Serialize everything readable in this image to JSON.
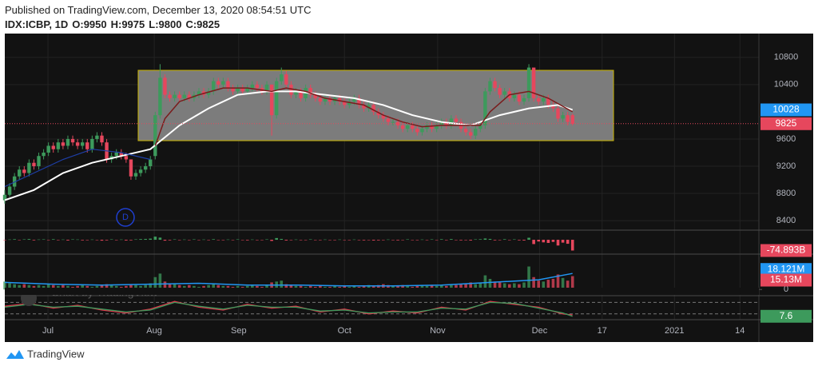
{
  "header": {
    "published": "Published on TradingView.com, December 13, 2020 08:54:51 UTC",
    "symbol": "IDX:ICBP, 1D",
    "ohlc_labels": [
      "O:",
      "H:",
      "L:",
      "C:"
    ]
  },
  "watermark": "Chart by TradingView",
  "marker_label": "D",
  "footer": "TradingView",
  "chart_data": [
    {
      "type": "candlestick",
      "up_color": "#3d9a5c",
      "down_color": "#e6475d",
      "grid": true,
      "xlim": [
        0,
        155.4
      ],
      "xticks": [
        {
          "value": 8.9,
          "label": "Jul"
        },
        {
          "value": 30.8,
          "label": "Aug"
        },
        {
          "value": 48.2,
          "label": "Sep"
        },
        {
          "value": 70,
          "label": "Oct"
        },
        {
          "value": 89.2,
          "label": "Nov"
        },
        {
          "value": 110.2,
          "label": "Dec"
        },
        {
          "value": 123.1,
          "label": "17"
        },
        {
          "value": 138,
          "label": "2021"
        },
        {
          "value": 151.5,
          "label": "14"
        }
      ],
      "ylim": [
        8260,
        11150
      ],
      "yticks": [
        8400,
        8800,
        9200,
        9600,
        10400,
        10800
      ],
      "last_price_line": true,
      "ohlc": [
        [
          8700,
          8850,
          8650,
          8780
        ],
        [
          8780,
          8950,
          8750,
          8900
        ],
        [
          8900,
          9100,
          8850,
          9050
        ],
        [
          9050,
          9200,
          9000,
          9150
        ],
        [
          9150,
          9200,
          9050,
          9100
        ],
        [
          9100,
          9300,
          9050,
          9250
        ],
        [
          9250,
          9300,
          9150,
          9200
        ],
        [
          9200,
          9400,
          9150,
          9350
        ],
        [
          9350,
          9450,
          9300,
          9400
        ],
        [
          9400,
          9550,
          9350,
          9500
        ],
        [
          9500,
          9550,
          9400,
          9450
        ],
        [
          9450,
          9600,
          9400,
          9550
        ],
        [
          9550,
          9600,
          9450,
          9500
        ],
        [
          9500,
          9650,
          9450,
          9600
        ],
        [
          9600,
          9650,
          9500,
          9550
        ],
        [
          9550,
          9600,
          9450,
          9500
        ],
        [
          9500,
          9600,
          9450,
          9550
        ],
        [
          9550,
          9600,
          9400,
          9450
        ],
        [
          9450,
          9650,
          9400,
          9600
        ],
        [
          9600,
          9700,
          9550,
          9650
        ],
        [
          9650,
          9700,
          9500,
          9550
        ],
        [
          9550,
          9600,
          9250,
          9300
        ],
        [
          9300,
          9400,
          9250,
          9350
        ],
        [
          9350,
          9450,
          9300,
          9400
        ],
        [
          9400,
          9450,
          9300,
          9350
        ],
        [
          9350,
          9400,
          9250,
          9300
        ],
        [
          9300,
          9300,
          9000,
          9050
        ],
        [
          9050,
          9150,
          9000,
          9100
        ],
        [
          9100,
          9200,
          9050,
          9150
        ],
        [
          9150,
          9250,
          9100,
          9200
        ],
        [
          9200,
          9350,
          9150,
          9300
        ],
        [
          9350,
          10000,
          9300,
          9950
        ],
        [
          9950,
          10700,
          9900,
          10500
        ],
        [
          10500,
          10550,
          10200,
          10250
        ],
        [
          10250,
          10300,
          10150,
          10200
        ],
        [
          10200,
          10300,
          10150,
          10250
        ],
        [
          10250,
          10300,
          10150,
          10200
        ],
        [
          10200,
          10300,
          10150,
          10250
        ],
        [
          10250,
          10300,
          10150,
          10200
        ],
        [
          10200,
          10300,
          10150,
          10250
        ],
        [
          10250,
          10350,
          10200,
          10300
        ],
        [
          10300,
          10350,
          10200,
          10250
        ],
        [
          10250,
          10350,
          10200,
          10300
        ],
        [
          10300,
          10500,
          10250,
          10450
        ],
        [
          10450,
          10500,
          10350,
          10400
        ],
        [
          10400,
          10500,
          10350,
          10450
        ],
        [
          10450,
          10500,
          10300,
          10350
        ],
        [
          10350,
          10400,
          10250,
          10300
        ],
        [
          10300,
          10400,
          10250,
          10350
        ],
        [
          10350,
          10400,
          10250,
          10300
        ],
        [
          10300,
          10400,
          10250,
          10350
        ],
        [
          10350,
          10450,
          10300,
          10400
        ],
        [
          10400,
          10450,
          10300,
          10350
        ],
        [
          10350,
          10400,
          10250,
          10300
        ],
        [
          10300,
          10450,
          10250,
          10400
        ],
        [
          10400,
          10400,
          9650,
          9950
        ],
        [
          9950,
          10500,
          9900,
          10450
        ],
        [
          10450,
          10650,
          10400,
          10550
        ],
        [
          10550,
          10600,
          10350,
          10400
        ],
        [
          10400,
          10450,
          10200,
          10250
        ],
        [
          10250,
          10350,
          10200,
          10300
        ],
        [
          10300,
          10350,
          10150,
          10200
        ],
        [
          10200,
          10400,
          10150,
          10350
        ],
        [
          10350,
          10400,
          10200,
          10250
        ],
        [
          10250,
          10300,
          10150,
          10200
        ],
        [
          10200,
          10250,
          10100,
          10150
        ],
        [
          10150,
          10250,
          10100,
          10200
        ],
        [
          10200,
          10250,
          10100,
          10150
        ],
        [
          10150,
          10250,
          10100,
          10200
        ],
        [
          10200,
          10250,
          10100,
          10150
        ],
        [
          10150,
          10200,
          10050,
          10100
        ],
        [
          10100,
          10200,
          10050,
          10150
        ],
        [
          10150,
          10250,
          10100,
          10200
        ],
        [
          10200,
          10250,
          10050,
          10100
        ],
        [
          10100,
          10150,
          10000,
          10050
        ],
        [
          10050,
          10150,
          10000,
          10100
        ],
        [
          10100,
          10150,
          9950,
          10000
        ],
        [
          10000,
          10050,
          9900,
          9950
        ],
        [
          9950,
          10000,
          9850,
          9900
        ],
        [
          9900,
          9950,
          9800,
          9850
        ],
        [
          9850,
          9900,
          9800,
          9850
        ],
        [
          9850,
          9900,
          9750,
          9800
        ],
        [
          9800,
          9850,
          9700,
          9750
        ],
        [
          9750,
          9850,
          9700,
          9800
        ],
        [
          9800,
          9850,
          9700,
          9750
        ],
        [
          9750,
          9800,
          9650,
          9700
        ],
        [
          9700,
          9800,
          9650,
          9750
        ],
        [
          9750,
          9850,
          9700,
          9800
        ],
        [
          9800,
          9850,
          9700,
          9750
        ],
        [
          9750,
          9850,
          9700,
          9800
        ],
        [
          9800,
          9900,
          9750,
          9850
        ],
        [
          9850,
          9900,
          9750,
          9800
        ],
        [
          9800,
          9950,
          9750,
          9900
        ],
        [
          9900,
          9950,
          9800,
          9850
        ],
        [
          9850,
          9900,
          9700,
          9750
        ],
        [
          9750,
          9800,
          9650,
          9700
        ],
        [
          9700,
          9750,
          9600,
          9650
        ],
        [
          9650,
          9800,
          9600,
          9750
        ],
        [
          9750,
          9850,
          9700,
          9800
        ],
        [
          9800,
          10350,
          9750,
          10300
        ],
        [
          10300,
          10500,
          10250,
          10450
        ],
        [
          10450,
          10500,
          10300,
          10350
        ],
        [
          10350,
          10400,
          10200,
          10250
        ],
        [
          10250,
          10350,
          10200,
          10300
        ],
        [
          10300,
          10350,
          10150,
          10200
        ],
        [
          10200,
          10300,
          10150,
          10250
        ],
        [
          10250,
          10300,
          10100,
          10150
        ],
        [
          10150,
          10250,
          10100,
          10200
        ],
        [
          10200,
          10700,
          10150,
          10650
        ],
        [
          10650,
          10650,
          10150,
          10200
        ],
        [
          10200,
          10250,
          10100,
          10150
        ],
        [
          10150,
          10250,
          10100,
          10200
        ],
        [
          10200,
          10250,
          10050,
          10100
        ],
        [
          10100,
          10150,
          10000,
          10050
        ],
        [
          10050,
          10100,
          9850,
          9900
        ],
        [
          9900,
          10000,
          9850,
          9950
        ],
        [
          9950,
          10000,
          9800,
          9850
        ],
        [
          9950,
          9975,
          9800,
          9825
        ]
      ],
      "series": [
        {
          "color": "#ffffff",
          "width": 2,
          "axis_label": "#2196f3",
          "x": [
            0,
            6,
            12,
            18,
            24,
            30,
            36,
            42,
            48,
            54,
            60,
            66,
            72,
            78,
            84,
            90,
            96,
            102,
            108,
            114,
            117
          ],
          "values": [
            8700,
            8850,
            9100,
            9250,
            9350,
            9450,
            9800,
            10050,
            10250,
            10300,
            10300,
            10250,
            10200,
            10100,
            9950,
            9850,
            9800,
            9950,
            10050,
            10100,
            10028
          ]
        },
        {
          "color": "#7a1c1c",
          "width": 1.5,
          "x": [
            31,
            33,
            36,
            40,
            45,
            50,
            55,
            58,
            62,
            66,
            70,
            74,
            78,
            82,
            86,
            90,
            94,
            98,
            100,
            104,
            108,
            112,
            117
          ],
          "values": [
            9500,
            9900,
            10150,
            10250,
            10350,
            10350,
            10300,
            10350,
            10300,
            10200,
            10150,
            10100,
            9950,
            9850,
            9780,
            9800,
            9800,
            9800,
            10000,
            10250,
            10300,
            10200,
            10000
          ]
        },
        {
          "color": "#1e3fa8",
          "width": 1.2,
          "x": [
            0,
            6,
            12,
            18,
            24,
            30
          ],
          "values": [
            8900,
            9100,
            9300,
            9450,
            9400,
            9300
          ]
        }
      ]
    },
    {
      "type": "bar",
      "color_by": "sign",
      "ylim": [
        -100,
        67
      ],
      "values": [
        -3,
        2,
        4,
        -2,
        3,
        5,
        -4,
        2,
        3,
        -2,
        4,
        -3,
        2,
        -5,
        3,
        2,
        -4,
        -3,
        2,
        -2,
        -6,
        -4,
        3,
        -3,
        2,
        -5,
        -4,
        3,
        5,
        6,
        8,
        22,
        15,
        -6,
        -4,
        3,
        -3,
        2,
        -2,
        3,
        -2,
        2,
        -3,
        4,
        -2,
        -3,
        2,
        -2,
        3,
        -2,
        -4,
        2,
        -3,
        -2,
        3,
        -8,
        12,
        6,
        -5,
        -3,
        2,
        -3,
        -2,
        3,
        -2,
        -3,
        2,
        -2,
        -3,
        2,
        -2,
        -3,
        2,
        -3,
        -4,
        -2,
        -5,
        -4,
        -3,
        2,
        -3,
        -4,
        -2,
        3,
        -2,
        -3,
        2,
        -2,
        3,
        -2,
        4,
        -3,
        5,
        -2,
        -4,
        -3,
        -5,
        3,
        4,
        9,
        6,
        -4,
        -3,
        4,
        -3,
        3,
        -4,
        -5,
        14,
        -30,
        -12,
        -18,
        -22,
        -15,
        -40,
        -20,
        -28,
        -74.893
      ],
      "value_labels": {
        "117": "-74.893B"
      }
    },
    {
      "type": "bar",
      "color_by": "candle",
      "ylim": [
        -7,
        40
      ],
      "yticks": [
        0
      ],
      "values": [
        9,
        7,
        6,
        5,
        6,
        5,
        4,
        5,
        4,
        6,
        5,
        4,
        5,
        4,
        3,
        4,
        5,
        4,
        3,
        4,
        5,
        6,
        5,
        4,
        3,
        4,
        6,
        5,
        4,
        5,
        7,
        14,
        18,
        9,
        7,
        6,
        5,
        4,
        5,
        4,
        3,
        4,
        5,
        6,
        5,
        4,
        4,
        3,
        4,
        3,
        4,
        5,
        4,
        3,
        5,
        8,
        9,
        10,
        6,
        5,
        4,
        4,
        3,
        4,
        3,
        4,
        3,
        3,
        4,
        3,
        4,
        3,
        4,
        3,
        4,
        5,
        4,
        5,
        6,
        5,
        4,
        4,
        5,
        4,
        3,
        4,
        5,
        4,
        5,
        4,
        5,
        4,
        6,
        5,
        6,
        7,
        8,
        6,
        7,
        16,
        12,
        9,
        8,
        7,
        6,
        7,
        6,
        8,
        26,
        14,
        10,
        9,
        11,
        12,
        17,
        13,
        10,
        15.13
      ],
      "value_labels": {
        "117": "15.13M"
      },
      "series": [
        {
          "color": "#2196f3",
          "width": 1.5,
          "x": [
            0,
            10,
            20,
            30,
            40,
            50,
            60,
            70,
            80,
            90,
            100,
            110,
            117
          ],
          "values": [
            8,
            6,
            5,
            6,
            7,
            5,
            5,
            4,
            4,
            5,
            8,
            11,
            18.121
          ],
          "value_labels": {
            "12": "18.121M"
          }
        }
      ]
    },
    {
      "type": "line",
      "ylim": [
        -10,
        115
      ],
      "levels": [
        80,
        20
      ],
      "series": [
        {
          "color": "#e0334a",
          "width": 1.3,
          "x": [
            0,
            5,
            10,
            15,
            20,
            25,
            30,
            35,
            40,
            45,
            50,
            55,
            60,
            65,
            70,
            75,
            80,
            85,
            90,
            95,
            100,
            105,
            110,
            115,
            117
          ],
          "values": [
            60,
            75,
            50,
            65,
            40,
            25,
            45,
            85,
            55,
            40,
            70,
            50,
            60,
            30,
            45,
            20,
            35,
            25,
            55,
            40,
            85,
            70,
            55,
            20,
            15
          ]
        },
        {
          "color": "#3d9a5c",
          "width": 1.3,
          "axis_label": "#3d9a5c",
          "x": [
            0,
            5,
            10,
            15,
            20,
            25,
            30,
            35,
            40,
            45,
            50,
            55,
            60,
            65,
            70,
            75,
            80,
            85,
            90,
            95,
            100,
            105,
            110,
            115,
            117
          ],
          "values": [
            55,
            70,
            55,
            60,
            45,
            30,
            40,
            80,
            60,
            45,
            65,
            55,
            55,
            35,
            40,
            25,
            30,
            30,
            50,
            45,
            80,
            75,
            50,
            25,
            7.6
          ]
        }
      ]
    }
  ]
}
